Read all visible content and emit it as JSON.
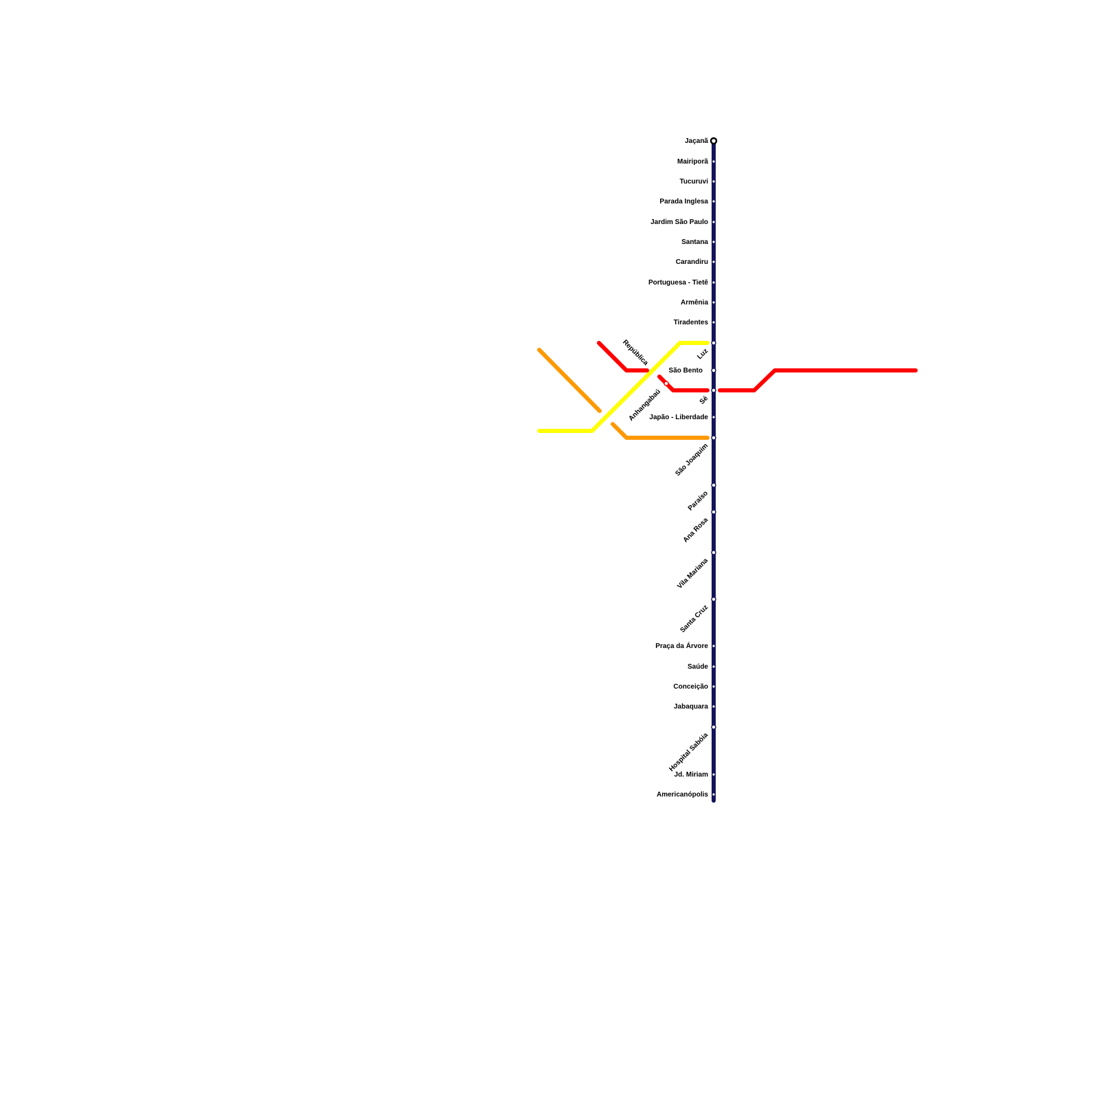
{
  "stations": [
    "Jaçanã",
    "Mairiporã",
    "Tucuruvi",
    "Parada Inglesa",
    "Jardim São Paulo",
    "Santana",
    "Carandiru",
    "Portuguesa - Tietê",
    "Armênia",
    "Tiradentes",
    "Luz",
    "São Bento",
    "Sé",
    "Japão - Liberdade",
    "São Joaquim",
    "Paraíso",
    "Ana Rosa",
    "Vila Mariana",
    "Santa Cruz",
    "Praça da Árvore",
    "Saúde",
    "Conceição",
    "Jabaquara",
    "Hospital Sabóia",
    "Jd. Miriam",
    "Americanópolis"
  ],
  "other_stations": [
    "República",
    "Anhangabaú"
  ]
}
